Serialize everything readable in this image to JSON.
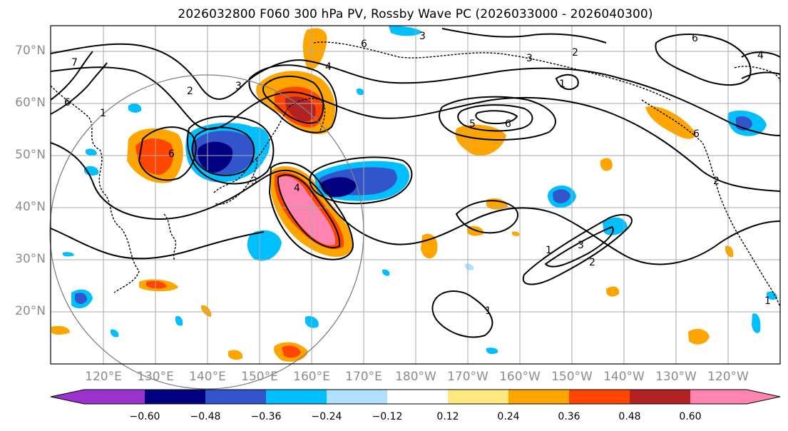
{
  "title": "2026032800 F060 300 hPa PV, Rossby Wave PC (2026033000 - 2026040300)",
  "lat_labels": [
    "70°N",
    "60°N",
    "50°N",
    "40°N",
    "30°N",
    "20°N"
  ],
  "lon_labels": [
    "120°E",
    "130°E",
    "140°E",
    "150°E",
    "160°E",
    "170°E",
    "180°W",
    "170°W",
    "160°W",
    "150°W",
    "140°W",
    "130°W",
    "120°W"
  ],
  "colorbar": {
    "ticks": [
      "−0.60",
      "−0.48",
      "−0.36",
      "−0.24",
      "−0.12",
      "0.12",
      "0.24",
      "0.36",
      "0.48",
      "0.60"
    ],
    "colors": [
      "#9933cc",
      "#000080",
      "#3355cc",
      "#00bfff",
      "#b0e0ff",
      "#ffffff",
      "#ffe880",
      "#ffa500",
      "#ff4500",
      "#b22222",
      "#ff85b0"
    ]
  },
  "contour_labels": [
    "1",
    "2",
    "3",
    "4",
    "5",
    "6",
    "7"
  ]
}
